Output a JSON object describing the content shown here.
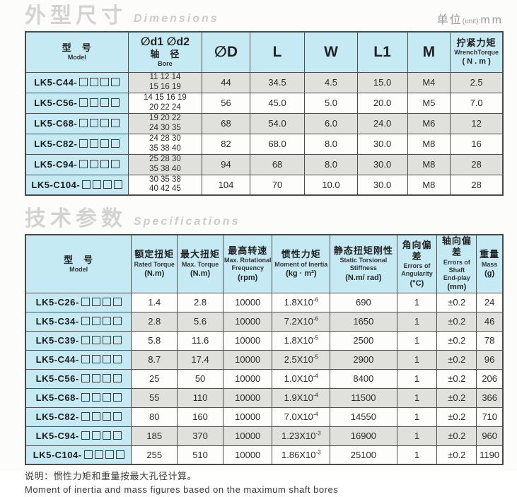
{
  "colors": {
    "header_bg": "#c6eaf4",
    "row_alt_bg": "#e0e0dc",
    "row_bg": "#fdfdfb",
    "border": "#4a4a4a",
    "title_gray": "#d3d3d1"
  },
  "dimensions_section": {
    "title_zh": "外型尺寸",
    "title_en": "Dimensions",
    "unit_zh": "单位",
    "unit_en": "(unit):",
    "unit_val": "mm",
    "box_count": 4,
    "stripe_start": 0,
    "columns": [
      {
        "key": "model",
        "lines": [
          [
            "型　号",
            "zh"
          ],
          [
            "Model",
            "en"
          ]
        ]
      },
      {
        "key": "bore",
        "lines": [
          [
            "∅d1 ∅d2",
            "zhbig"
          ],
          [
            "轴　径",
            "zh"
          ],
          [
            "Bore",
            "en"
          ]
        ]
      },
      {
        "key": "d",
        "lines": [
          [
            "∅D",
            "big"
          ]
        ]
      },
      {
        "key": "l",
        "lines": [
          [
            "L",
            "big"
          ]
        ]
      },
      {
        "key": "w",
        "lines": [
          [
            "W",
            "big"
          ]
        ]
      },
      {
        "key": "l1",
        "lines": [
          [
            "L1",
            "big"
          ]
        ]
      },
      {
        "key": "m",
        "lines": [
          [
            "M",
            "big"
          ]
        ]
      },
      {
        "key": "torque",
        "lines": [
          [
            "拧紧力矩",
            "zh"
          ],
          [
            "WrenchTorque",
            "en"
          ],
          [
            "( N . m )",
            "unit"
          ]
        ]
      }
    ],
    "rows": [
      {
        "model": "LK5-C44-",
        "bore": [
          "11 12 14",
          "15 16 19"
        ],
        "d": "44",
        "l": "34.5",
        "w": "4.5",
        "l1": "15.0",
        "m": "M4",
        "torque": "2.5"
      },
      {
        "model": "LK5-C56-",
        "bore": [
          "14 15 16 19",
          "20 22 24"
        ],
        "d": "56",
        "l": "45.0",
        "w": "5.0",
        "l1": "20.0",
        "m": "M5",
        "torque": "7.0"
      },
      {
        "model": "LK5-C68-",
        "bore": [
          "19 20 22",
          "24 30 35"
        ],
        "d": "68",
        "l": "54.0",
        "w": "6.0",
        "l1": "24.0",
        "m": "M6",
        "torque": "12"
      },
      {
        "model": "LK5-C82-",
        "bore": [
          "24 28 30",
          "35 38 40"
        ],
        "d": "82",
        "l": "68.0",
        "w": "8.0",
        "l1": "30.0",
        "m": "M8",
        "torque": "16"
      },
      {
        "model": "LK5-C94-",
        "bore": [
          "25 28 30",
          "35 38 40"
        ],
        "d": "94",
        "l": "68",
        "w": "8.0",
        "l1": "30.0",
        "m": "M8",
        "torque": "28"
      },
      {
        "model": "LK5-C104-",
        "bore": [
          "30 35 38",
          "40 42 45"
        ],
        "d": "104",
        "l": "70",
        "w": "10.0",
        "l1": "30.0",
        "m": "M8",
        "torque": "28"
      }
    ]
  },
  "specs_section": {
    "title_zh": "技术参数",
    "title_en": "Specifications",
    "box_count": 4,
    "stripe_start": 1,
    "columns": [
      {
        "key": "model",
        "lines": [
          [
            "型　号",
            "zh"
          ],
          [
            "Model",
            "en"
          ]
        ]
      },
      {
        "key": "rated",
        "lines": [
          [
            "额定扭矩",
            "zh"
          ],
          [
            "Rated Torque",
            "en"
          ],
          [
            "(N.m)",
            "unit"
          ]
        ]
      },
      {
        "key": "max",
        "lines": [
          [
            "最大扭矩",
            "zh"
          ],
          [
            "Max. Torque",
            "en"
          ],
          [
            "(N.m)",
            "unit"
          ]
        ]
      },
      {
        "key": "speed",
        "lines": [
          [
            "最高转速",
            "zh"
          ],
          [
            "Max. Rotational",
            "en"
          ],
          [
            "Frequency",
            "en"
          ],
          [
            "(rpm)",
            "unit"
          ]
        ]
      },
      {
        "key": "inertia",
        "lines": [
          [
            "惯性力矩",
            "zh"
          ],
          [
            "Moment of Inertia",
            "en"
          ],
          [
            "(kg · m²)",
            "unit"
          ]
        ]
      },
      {
        "key": "stiffness",
        "lines": [
          [
            "静态扭矩刚性",
            "zh"
          ],
          [
            "Static Torsional",
            "en"
          ],
          [
            "Stiffness",
            "en"
          ],
          [
            "(N.m/ rad)",
            "unit"
          ]
        ]
      },
      {
        "key": "angularity",
        "lines": [
          [
            "角向偏差",
            "zh"
          ],
          [
            "Errors of",
            "en"
          ],
          [
            "Angularity",
            "en"
          ],
          [
            "(°C)",
            "unit"
          ]
        ]
      },
      {
        "key": "endplay",
        "lines": [
          [
            "轴向偏差",
            "zh"
          ],
          [
            "Errors of Shaft",
            "en"
          ],
          [
            "End-play",
            "en"
          ],
          [
            "(mm)",
            "unit"
          ]
        ]
      },
      {
        "key": "mass",
        "lines": [
          [
            "重量",
            "zh"
          ],
          [
            "Mass",
            "en"
          ],
          [
            "(g)",
            "unit"
          ]
        ]
      }
    ],
    "rows": [
      {
        "model": "LK5-C26-",
        "rated": "1.4",
        "max": "2.8",
        "speed": "10000",
        "inertia": "1.8X10^-6",
        "stiffness": "690",
        "angularity": "1",
        "endplay": "±0.2",
        "mass": "24"
      },
      {
        "model": "LK5-C34-",
        "rated": "2.8",
        "max": "5.6",
        "speed": "10000",
        "inertia": "7.2X10^-6",
        "stiffness": "1650",
        "angularity": "1",
        "endplay": "±0.2",
        "mass": "46"
      },
      {
        "model": "LK5-C39-",
        "rated": "5.8",
        "max": "11.6",
        "speed": "10000",
        "inertia": "1.8X10^-5",
        "stiffness": "2500",
        "angularity": "1",
        "endplay": "±0.2",
        "mass": "78"
      },
      {
        "model": "LK5-C44-",
        "rated": "8.7",
        "max": "17.4",
        "speed": "10000",
        "inertia": "2.5X10^-5",
        "stiffness": "2900",
        "angularity": "1",
        "endplay": "±0.2",
        "mass": "96"
      },
      {
        "model": "LK5-C56-",
        "rated": "25",
        "max": "50",
        "speed": "10000",
        "inertia": "1.0X10^-4",
        "stiffness": "8400",
        "angularity": "1",
        "endplay": "±0.2",
        "mass": "206"
      },
      {
        "model": "LK5-C68-",
        "rated": "55",
        "max": "110",
        "speed": "10000",
        "inertia": "1.9X10^-4",
        "stiffness": "11500",
        "angularity": "1",
        "endplay": "±0.2",
        "mass": "366"
      },
      {
        "model": "LK5-C82-",
        "rated": "80",
        "max": "160",
        "speed": "10000",
        "inertia": "7.0X10^-4",
        "stiffness": "14550",
        "angularity": "1",
        "endplay": "±0.2",
        "mass": "710"
      },
      {
        "model": "LK5-C94-",
        "rated": "185",
        "max": "370",
        "speed": "10000",
        "inertia": "1.23X10^-3",
        "stiffness": "16900",
        "angularity": "1",
        "endplay": "±0.2",
        "mass": "960"
      },
      {
        "model": "LK5-C104-",
        "rated": "255",
        "max": "510",
        "speed": "10000",
        "inertia": "1.86X10^-3",
        "stiffness": "25100",
        "angularity": "1",
        "endplay": "±0.2",
        "mass": "1190"
      }
    ]
  },
  "footer": {
    "note_zh": "说明：惯性力矩和重量按最大孔径计算。",
    "note_en": "Moment of inertia and mass figures based on the maximum shaft bores"
  },
  "layout": {
    "t1_widths": {
      "model": "21.5%",
      "bore": "15.5%",
      "d": "10%",
      "l": "11.5%",
      "w": "11%",
      "l1": "10.5%",
      "m": "9%",
      "torque": "11%"
    },
    "t2_widths": {
      "model": "22.2%",
      "rated": "9.6%",
      "max": "9.6%",
      "speed": "10.3%",
      "inertia": "12.1%",
      "stiffness": "14%",
      "angularity": "8.4%",
      "endplay": "8.3%",
      "mass": "5.5%"
    }
  }
}
